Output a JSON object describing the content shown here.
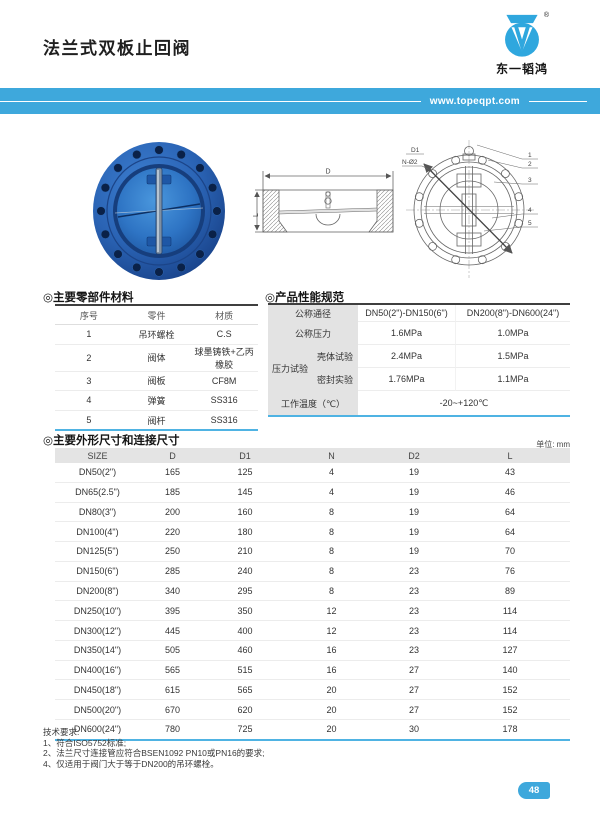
{
  "header": {
    "title": "法兰式双板止回阀",
    "brand_name": "东一韬鸿",
    "registered_mark": "®",
    "banner_url": "www.topeqpt.com"
  },
  "colors": {
    "accent_blue": "#3EA8DC",
    "table_rule_blue": "#4FB3E3",
    "valve_blue": "#2A63B4"
  },
  "drawings": {
    "section": {
      "dim_width": "D",
      "dim_height": "L"
    },
    "front": {
      "dim_bolt_circle": "D1",
      "dim_holes": "N-Ø2",
      "callouts": [
        "1",
        "2",
        "3",
        "4",
        "5"
      ]
    }
  },
  "materials_table": {
    "title": "◎主要零部件材料",
    "headers": [
      "序号",
      "零件",
      "材质"
    ],
    "rows": [
      [
        "1",
        "吊环螺栓",
        "C.S"
      ],
      [
        "2",
        "阀体",
        "球墨铸铁+乙丙橡胶"
      ],
      [
        "3",
        "阀板",
        "CF8M"
      ],
      [
        "4",
        "弹簧",
        "SS316"
      ],
      [
        "5",
        "阀杆",
        "SS316"
      ]
    ]
  },
  "performance_table": {
    "title": "◎产品性能规范",
    "nominal_diameter": {
      "label": "公称通径",
      "v1": "DN50(2\")-DN150(6\")",
      "v2": "DN200(8\")-DN600(24\")"
    },
    "nominal_pressure": {
      "label": "公称压力",
      "v1": "1.6MPa",
      "v2": "1.0MPa"
    },
    "pressure_test_label": "压力试验",
    "shell_test": {
      "label": "壳体试验",
      "v1": "2.4MPa",
      "v2": "1.5MPa"
    },
    "seal_test": {
      "label": "密封实验",
      "v1": "1.76MPa",
      "v2": "1.1MPa"
    },
    "working_temp": {
      "label": "工作温度（℃）",
      "value": "-20~+120℃"
    }
  },
  "dimensions_table": {
    "title": "◎主要外形尺寸和连接尺寸",
    "unit_note": "单位: mm",
    "headers": [
      "SIZE",
      "D",
      "D1",
      "N",
      "D2",
      "L"
    ],
    "rows": [
      [
        "DN50(2\")",
        "165",
        "125",
        "4",
        "19",
        "43"
      ],
      [
        "DN65(2.5\")",
        "185",
        "145",
        "4",
        "19",
        "46"
      ],
      [
        "DN80(3\")",
        "200",
        "160",
        "8",
        "19",
        "64"
      ],
      [
        "DN100(4\")",
        "220",
        "180",
        "8",
        "19",
        "64"
      ],
      [
        "DN125(5\")",
        "250",
        "210",
        "8",
        "19",
        "70"
      ],
      [
        "DN150(6\")",
        "285",
        "240",
        "8",
        "23",
        "76"
      ],
      [
        "DN200(8\")",
        "340",
        "295",
        "8",
        "23",
        "89"
      ],
      [
        "DN250(10\")",
        "395",
        "350",
        "12",
        "23",
        "114"
      ],
      [
        "DN300(12\")",
        "445",
        "400",
        "12",
        "23",
        "114"
      ],
      [
        "DN350(14\")",
        "505",
        "460",
        "16",
        "23",
        "127"
      ],
      [
        "DN400(16\")",
        "565",
        "515",
        "16",
        "27",
        "140"
      ],
      [
        "DN450(18\")",
        "615",
        "565",
        "20",
        "27",
        "152"
      ],
      [
        "DN500(20\")",
        "670",
        "620",
        "20",
        "27",
        "152"
      ],
      [
        "DN600(24\")",
        "780",
        "725",
        "20",
        "30",
        "178"
      ]
    ]
  },
  "notes": {
    "title": "技术要求:",
    "items": [
      "1、符合ISO5752标准;",
      "2、法兰尺寸连接管应符合BSEN1092 PN10或PN16的要求;",
      "4、仅适用于阀门大于等于DN200的吊环螺栓。"
    ]
  },
  "page_number": "48"
}
